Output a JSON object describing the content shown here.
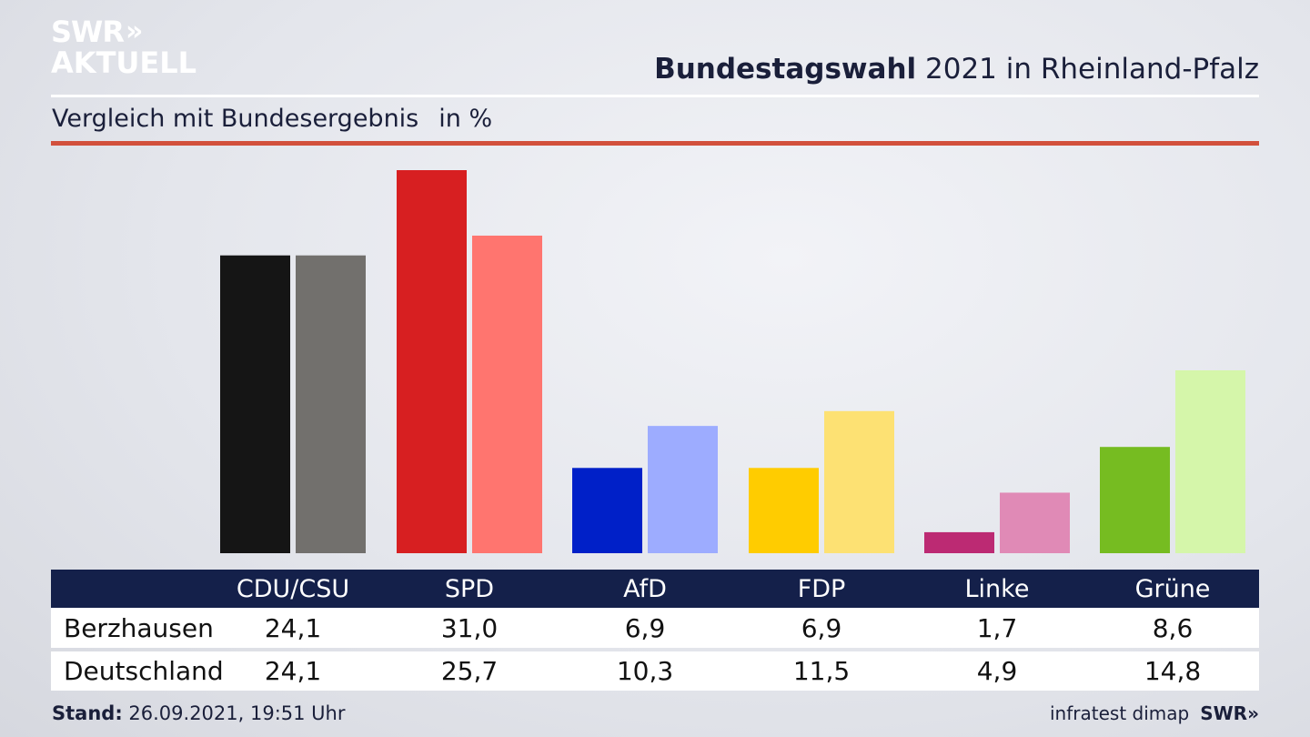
{
  "header": {
    "logo_line1": "SWR",
    "logo_chevrons": "»",
    "logo_line2": "AKTUELL",
    "title_bold": "Bundestagswahl",
    "title_rest": " 2021 in Rheinland-Pfalz",
    "subtitle": "Vergleich mit Bundesergebnis",
    "unit": "in %"
  },
  "chart_data": {
    "type": "bar",
    "title": "Bundestagswahl 2021 in Rheinland-Pfalz",
    "subtitle": "Vergleich mit Bundesergebnis",
    "ylabel": "in %",
    "categories": [
      "CDU/CSU",
      "SPD",
      "AfD",
      "FDP",
      "Linke",
      "Grüne"
    ],
    "series": [
      {
        "name": "Berzhausen",
        "values": [
          24.1,
          31.0,
          6.9,
          6.9,
          1.7,
          8.6
        ],
        "colors": [
          "#151515",
          "#d71f21",
          "#0020c8",
          "#ffcc00",
          "#bc2a73",
          "#76bc21"
        ]
      },
      {
        "name": "Deutschland",
        "values": [
          24.1,
          25.7,
          10.3,
          11.5,
          4.9,
          14.8
        ],
        "colors": [
          "#72706d",
          "#ff756f",
          "#9dacff",
          "#fde173",
          "#e08ab6",
          "#d5f6aa"
        ]
      }
    ],
    "ylim": [
      0,
      31
    ],
    "grid": false
  },
  "table": {
    "headers": [
      "CDU/CSU",
      "SPD",
      "AfD",
      "FDP",
      "Linke",
      "Grüne"
    ],
    "rows": [
      {
        "label": "Berzhausen",
        "values": [
          "24,1",
          "31,0",
          "6,9",
          "6,9",
          "1,7",
          "8,6"
        ]
      },
      {
        "label": "Deutschland",
        "values": [
          "24,1",
          "25,7",
          "10,3",
          "11,5",
          "4,9",
          "14,8"
        ]
      }
    ]
  },
  "footer": {
    "stand_label": "Stand:",
    "stand_value": " 26.09.2021, 19:51 Uhr",
    "source": "infratest dimap",
    "brand": "SWR»"
  },
  "colors": {
    "navy": "#14204a",
    "accent_red": "#d2503c"
  }
}
